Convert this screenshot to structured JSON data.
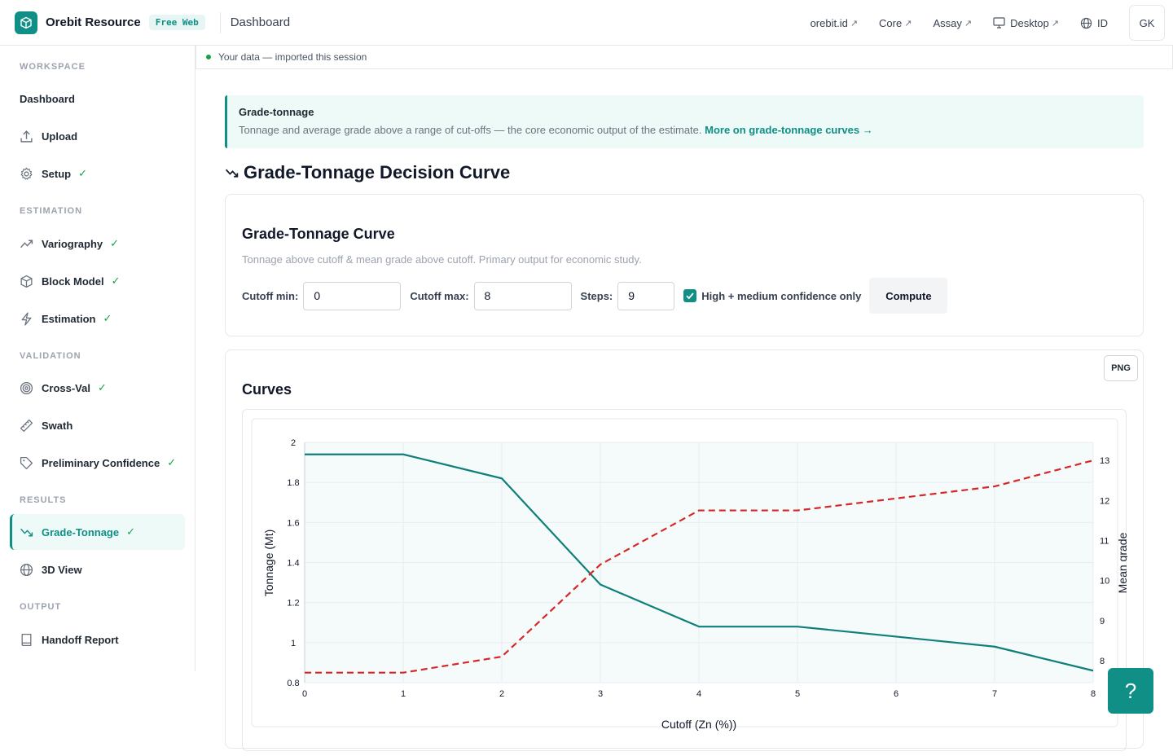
{
  "header": {
    "brand": "Orebit Resource",
    "badge": "Free Web",
    "page": "Dashboard",
    "links": [
      {
        "label": "orebit.id",
        "arrow": "↗"
      },
      {
        "label": "Core",
        "arrow": "↗"
      },
      {
        "label": "Assay",
        "arrow": "↗"
      },
      {
        "label": "Desktop",
        "arrow": "↗",
        "icon": "monitor-icon"
      },
      {
        "label": "ID",
        "icon": "globe-icon"
      }
    ],
    "avatar": "GK"
  },
  "sidebar": {
    "sections": {
      "workspace": "WORKSPACE",
      "estimation": "ESTIMATION",
      "validation": "VALIDATION",
      "results": "RESULTS",
      "output": "OUTPUT"
    },
    "items": [
      {
        "label": "Dashboard",
        "icon": "none",
        "done": false
      },
      {
        "label": "Upload",
        "icon": "upload-icon",
        "done": false
      },
      {
        "label": "Setup",
        "icon": "gear-icon",
        "done": true
      },
      {
        "label": "Variography",
        "icon": "trend-icon",
        "done": true
      },
      {
        "label": "Block Model",
        "icon": "cube-icon",
        "done": true
      },
      {
        "label": "Estimation",
        "icon": "bolt-icon",
        "done": true
      },
      {
        "label": "Cross-Val",
        "icon": "target-icon",
        "done": true
      },
      {
        "label": "Swath",
        "icon": "ruler-icon",
        "done": false
      },
      {
        "label": "Preliminary Confidence",
        "icon": "tag-icon",
        "done": true
      },
      {
        "label": "Grade-Tonnage",
        "icon": "trend-down-icon",
        "done": true,
        "active": true
      },
      {
        "label": "3D View",
        "icon": "globe-icon",
        "done": false
      },
      {
        "label": "Handoff Report",
        "icon": "book-icon",
        "done": false
      }
    ],
    "check": "✓"
  },
  "status": "Your data — imported this session",
  "info": {
    "title": "Grade-tonnage",
    "text": "Tonnage and average grade above a range of cut-offs — the core economic output of the estimate.",
    "link": "More on grade-tonnage curves →"
  },
  "section_title": "Grade-Tonnage Decision Curve",
  "params_card": {
    "title": "Grade-Tonnage Curve",
    "description": "Tonnage above cutoff & mean grade above cutoff. Primary output for economic study.",
    "cutoff_min_label": "Cutoff min:",
    "cutoff_min": "0",
    "cutoff_max_label": "Cutoff max:",
    "cutoff_max": "8",
    "steps_label": "Steps:",
    "steps": "9",
    "checkbox_label": "High + medium confidence only",
    "checkbox_checked": true,
    "compute": "Compute"
  },
  "curves_card": {
    "title": "Curves",
    "png": "PNG"
  },
  "help": "?",
  "chart_data": {
    "type": "line",
    "x": [
      0,
      1,
      2,
      3,
      4,
      5,
      6,
      7,
      8
    ],
    "xlabel": "Cutoff (Zn (%))",
    "ylabel": "Tonnage (Mt)",
    "y2label": "Mean grade",
    "ylim": [
      0.8,
      2
    ],
    "y2lim": [
      7.45,
      13.45
    ],
    "yticks": [
      "0.8",
      "1",
      "1.2",
      "1.4",
      "1.6",
      "1.8",
      "2"
    ],
    "y2ticks": [
      "8",
      "9",
      "10",
      "11",
      "12",
      "13"
    ],
    "grid": true,
    "series": [
      {
        "axis": "left",
        "style": "solid",
        "color": "#0f7f7a",
        "values": [
          1.94,
          1.94,
          1.82,
          1.29,
          1.08,
          1.08,
          1.03,
          0.98,
          0.86
        ]
      },
      {
        "axis": "right",
        "style": "dashed",
        "color": "#d62728",
        "values": [
          7.7,
          7.7,
          8.1,
          10.4,
          11.75,
          11.75,
          12.05,
          12.35,
          13.0
        ]
      }
    ]
  }
}
